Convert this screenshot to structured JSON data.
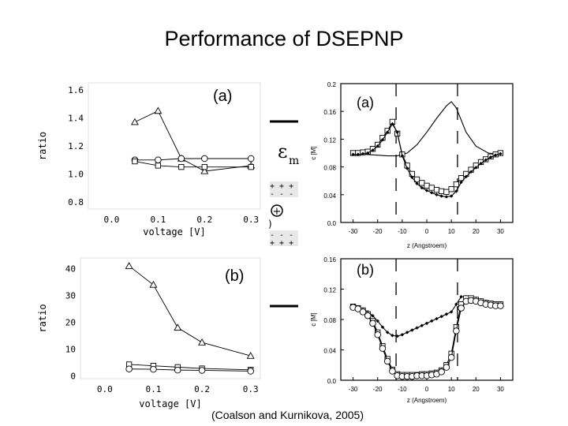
{
  "slide": {
    "title": "Performance of DSEPNP",
    "citation": "(Coalson and Kurnikova, 2005)"
  },
  "middle_strip": {
    "epsilon_label": "ε",
    "epsilon_subscript": "m",
    "charge_row_plus": "+ + +",
    "charge_row_minus": "- - -",
    "charge_circle": "+",
    "fragment": ")"
  },
  "chart_data": [
    {
      "id": "ratio-a",
      "type": "line",
      "panel_label": "(a)",
      "xlabel": "voltage [V]",
      "ylabel": "ratio",
      "xlim": [
        -0.05,
        0.32
      ],
      "ylim": [
        0.75,
        1.65
      ],
      "xticks": [
        "0.0",
        "0.1",
        "0.2",
        "0.3"
      ],
      "xtick_values": [
        0.0,
        0.1,
        0.2,
        0.3
      ],
      "yticks": [
        "0.8",
        "1.0",
        "1.2",
        "1.4",
        "1.6"
      ],
      "ytick_values": [
        0.8,
        1.0,
        1.2,
        1.4,
        1.6
      ],
      "x": [
        0.05,
        0.1,
        0.15,
        0.2,
        0.3
      ],
      "series": [
        {
          "name": "triangle",
          "marker": "triangle",
          "values": [
            1.37,
            1.45,
            1.11,
            1.02,
            1.06
          ]
        },
        {
          "name": "circle",
          "marker": "circle",
          "values": [
            1.1,
            1.1,
            1.11,
            1.11,
            1.11
          ]
        },
        {
          "name": "square",
          "marker": "square",
          "values": [
            1.09,
            1.06,
            1.05,
            1.05,
            1.05
          ]
        }
      ]
    },
    {
      "id": "ratio-b",
      "type": "line",
      "panel_label": "(b)",
      "xlabel": "voltage [V]",
      "ylabel": "ratio",
      "xlim": [
        -0.05,
        0.32
      ],
      "ylim": [
        -1,
        44
      ],
      "xticks": [
        "0.0",
        "0.1",
        "0.2",
        "0.3"
      ],
      "xtick_values": [
        0.0,
        0.1,
        0.2,
        0.3
      ],
      "yticks": [
        "0",
        "10",
        "20",
        "30",
        "40"
      ],
      "ytick_values": [
        0,
        10,
        20,
        30,
        40
      ],
      "x": [
        0.05,
        0.1,
        0.15,
        0.2,
        0.3
      ],
      "series": [
        {
          "name": "triangle",
          "marker": "triangle",
          "values": [
            41,
            34,
            18,
            12.5,
            7.5
          ]
        },
        {
          "name": "square",
          "marker": "square",
          "values": [
            4.3,
            3.8,
            3.3,
            2.8,
            2.3
          ]
        },
        {
          "name": "circle",
          "marker": "circle",
          "values": [
            2.6,
            2.5,
            2.2,
            2.1,
            1.8
          ]
        }
      ]
    },
    {
      "id": "conc-a",
      "type": "line",
      "panel_label": "(a)",
      "xlabel": "z (Angstroem)",
      "ylabel": "c [M]",
      "xlim": [
        -35,
        35
      ],
      "ylim": [
        0,
        0.2
      ],
      "xticks": [
        "-30",
        "-20",
        "-10",
        "0",
        "10",
        "20",
        "30"
      ],
      "xtick_values": [
        -30,
        -20,
        -10,
        0,
        10,
        20,
        30
      ],
      "yticks": [
        "0.0",
        "0.04",
        "0.08",
        "0.12",
        "0.16",
        "0.2"
      ],
      "ytick_values": [
        0,
        0.04,
        0.08,
        0.12,
        0.16,
        0.2
      ],
      "vlines": [
        -12.5,
        12.5
      ],
      "series": [
        {
          "name": "smooth",
          "marker": "none",
          "x": [
            -30,
            -25,
            -20,
            -16,
            -12,
            -8,
            -4,
            0,
            4,
            8,
            10,
            12,
            16,
            20,
            25,
            30
          ],
          "values": [
            0.1,
            0.098,
            0.097,
            0.096,
            0.096,
            0.1,
            0.112,
            0.13,
            0.15,
            0.168,
            0.174,
            0.165,
            0.13,
            0.11,
            0.1,
            0.098
          ]
        },
        {
          "name": "markers-1",
          "marker": "square",
          "x": [
            -30,
            -28,
            -26,
            -24,
            -22,
            -20,
            -18,
            -16,
            -14,
            -12,
            -10,
            -8,
            -6,
            -4,
            -2,
            0,
            2,
            4,
            6,
            8,
            10,
            12,
            14,
            16,
            18,
            20,
            22,
            24,
            26,
            28,
            30
          ],
          "values": [
            0.1,
            0.1,
            0.101,
            0.102,
            0.106,
            0.112,
            0.122,
            0.132,
            0.145,
            0.128,
            0.098,
            0.082,
            0.07,
            0.062,
            0.057,
            0.053,
            0.05,
            0.047,
            0.045,
            0.044,
            0.048,
            0.055,
            0.064,
            0.07,
            0.076,
            0.082,
            0.087,
            0.091,
            0.095,
            0.098,
            0.1
          ]
        },
        {
          "name": "markers-2",
          "marker": "diamond",
          "x": [
            -30,
            -28,
            -26,
            -24,
            -22,
            -20,
            -18,
            -16,
            -14,
            -12,
            -10,
            -8,
            -6,
            -4,
            -2,
            0,
            2,
            4,
            6,
            8,
            10,
            12,
            14,
            16,
            18,
            20,
            22,
            24,
            26,
            28,
            30
          ],
          "values": [
            0.098,
            0.098,
            0.099,
            0.1,
            0.104,
            0.11,
            0.119,
            0.13,
            0.142,
            0.13,
            0.096,
            0.078,
            0.065,
            0.056,
            0.05,
            0.046,
            0.043,
            0.04,
            0.038,
            0.037,
            0.038,
            0.045,
            0.058,
            0.066,
            0.073,
            0.079,
            0.085,
            0.09,
            0.094,
            0.097,
            0.099
          ]
        }
      ]
    },
    {
      "id": "conc-b",
      "type": "line",
      "panel_label": "(b)",
      "xlabel": "z (Angstroem)",
      "ylabel": "c [M]",
      "xlim": [
        -35,
        35
      ],
      "ylim": [
        0,
        0.16
      ],
      "xticks": [
        "-30",
        "-20",
        "-10",
        "0",
        "10",
        "20",
        "30"
      ],
      "xtick_values": [
        -30,
        -20,
        -10,
        0,
        10,
        20,
        30
      ],
      "yticks": [
        "0.0",
        "0.04",
        "0.08",
        "0.12",
        "0.16"
      ],
      "ytick_values": [
        0,
        0.04,
        0.08,
        0.12,
        0.16
      ],
      "vlines": [
        -12.5,
        12.5
      ],
      "series": [
        {
          "name": "upper",
          "marker": "diamond",
          "x": [
            -30,
            -28,
            -26,
            -24,
            -22,
            -20,
            -18,
            -16,
            -14,
            -12,
            -10,
            -8,
            -6,
            -4,
            -2,
            0,
            2,
            4,
            6,
            8,
            10,
            12,
            14,
            16,
            18,
            20,
            22,
            24,
            26,
            28,
            30
          ],
          "values": [
            0.098,
            0.096,
            0.094,
            0.09,
            0.085,
            0.078,
            0.07,
            0.063,
            0.059,
            0.058,
            0.06,
            0.063,
            0.066,
            0.069,
            0.072,
            0.075,
            0.078,
            0.081,
            0.084,
            0.087,
            0.09,
            0.1,
            0.11,
            0.11,
            0.109,
            0.108,
            0.106,
            0.104,
            0.102,
            0.1,
            0.099
          ]
        },
        {
          "name": "lower-1",
          "marker": "square",
          "x": [
            -30,
            -28,
            -26,
            -24,
            -22,
            -20,
            -18,
            -16,
            -14,
            -12,
            -10,
            -8,
            -6,
            -4,
            -2,
            0,
            2,
            4,
            6,
            8,
            10,
            12,
            14,
            16,
            18,
            20,
            22,
            24,
            26,
            28,
            30
          ],
          "values": [
            0.097,
            0.095,
            0.092,
            0.087,
            0.078,
            0.063,
            0.045,
            0.028,
            0.014,
            0.008,
            0.007,
            0.007,
            0.007,
            0.007,
            0.008,
            0.008,
            0.009,
            0.01,
            0.013,
            0.02,
            0.035,
            0.07,
            0.1,
            0.108,
            0.108,
            0.106,
            0.104,
            0.102,
            0.101,
            0.1,
            0.1
          ]
        },
        {
          "name": "lower-2",
          "marker": "circle",
          "x": [
            -30,
            -28,
            -26,
            -24,
            -22,
            -20,
            -18,
            -16,
            -14,
            -12,
            -10,
            -8,
            -6,
            -4,
            -2,
            0,
            2,
            4,
            6,
            8,
            10,
            12,
            14,
            16,
            18,
            20,
            22,
            24,
            26,
            28,
            30
          ],
          "values": [
            0.096,
            0.094,
            0.09,
            0.085,
            0.075,
            0.06,
            0.042,
            0.025,
            0.012,
            0.006,
            0.005,
            0.005,
            0.005,
            0.006,
            0.006,
            0.006,
            0.007,
            0.008,
            0.011,
            0.017,
            0.03,
            0.065,
            0.095,
            0.104,
            0.105,
            0.104,
            0.102,
            0.1,
            0.099,
            0.098,
            0.098
          ]
        }
      ]
    }
  ]
}
